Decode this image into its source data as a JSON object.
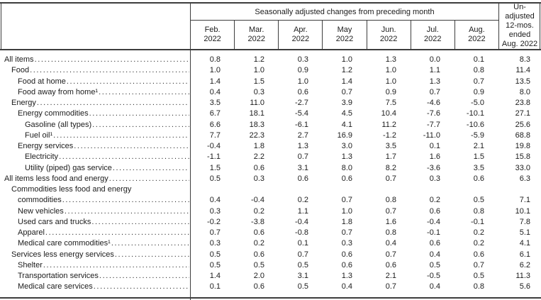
{
  "table": {
    "header": {
      "group_title": "Seasonally adjusted changes from preceding month",
      "months": [
        {
          "month": "Feb.",
          "year": "2022"
        },
        {
          "month": "Mar.",
          "year": "2022"
        },
        {
          "month": "Apr.",
          "year": "2022"
        },
        {
          "month": "May",
          "year": "2022"
        },
        {
          "month": "Jun.",
          "year": "2022"
        },
        {
          "month": "Jul.",
          "year": "2022"
        },
        {
          "month": "Aug.",
          "year": "2022"
        }
      ],
      "unadjusted_lines": [
        "Un-",
        "adjusted",
        "12-mos.",
        "ended",
        "Aug. 2022"
      ]
    },
    "rows": [
      {
        "label": "All items",
        "indent": 0,
        "values": [
          "0.8",
          "1.2",
          "0.3",
          "1.0",
          "1.3",
          "0.0",
          "0.1",
          "8.3"
        ]
      },
      {
        "label": "Food",
        "indent": 1,
        "values": [
          "1.0",
          "1.0",
          "0.9",
          "1.2",
          "1.0",
          "1.1",
          "0.8",
          "11.4"
        ]
      },
      {
        "label": "Food at home",
        "indent": 2,
        "values": [
          "1.4",
          "1.5",
          "1.0",
          "1.4",
          "1.0",
          "1.3",
          "0.7",
          "13.5"
        ]
      },
      {
        "label": "Food away from home¹",
        "indent": 2,
        "values": [
          "0.4",
          "0.3",
          "0.6",
          "0.7",
          "0.9",
          "0.7",
          "0.9",
          "8.0"
        ]
      },
      {
        "label": "Energy",
        "indent": 1,
        "values": [
          "3.5",
          "11.0",
          "-2.7",
          "3.9",
          "7.5",
          "-4.6",
          "-5.0",
          "23.8"
        ]
      },
      {
        "label": "Energy commodities",
        "indent": 2,
        "values": [
          "6.7",
          "18.1",
          "-5.4",
          "4.5",
          "10.4",
          "-7.6",
          "-10.1",
          "27.1"
        ]
      },
      {
        "label": "Gasoline (all types)",
        "indent": 3,
        "values": [
          "6.6",
          "18.3",
          "-6.1",
          "4.1",
          "11.2",
          "-7.7",
          "-10.6",
          "25.6"
        ]
      },
      {
        "label": "Fuel oil¹",
        "indent": 3,
        "values": [
          "7.7",
          "22.3",
          "2.7",
          "16.9",
          "-1.2",
          "-11.0",
          "-5.9",
          "68.8"
        ]
      },
      {
        "label": "Energy services",
        "indent": 2,
        "values": [
          "-0.4",
          "1.8",
          "1.3",
          "3.0",
          "3.5",
          "0.1",
          "2.1",
          "19.8"
        ]
      },
      {
        "label": "Electricity",
        "indent": 3,
        "values": [
          "-1.1",
          "2.2",
          "0.7",
          "1.3",
          "1.7",
          "1.6",
          "1.5",
          "15.8"
        ]
      },
      {
        "label": "Utility (piped) gas service",
        "indent": 3,
        "values": [
          "1.5",
          "0.6",
          "3.1",
          "8.0",
          "8.2",
          "-3.6",
          "3.5",
          "33.0"
        ]
      },
      {
        "label": "All items less food and energy",
        "indent": 0,
        "values": [
          "0.5",
          "0.3",
          "0.6",
          "0.6",
          "0.7",
          "0.3",
          "0.6",
          "6.3"
        ]
      },
      {
        "label": "Commodities less food and energy",
        "label2": "commodities",
        "indent": 1,
        "indent2": 2,
        "values": [
          "0.4",
          "-0.4",
          "0.2",
          "0.7",
          "0.8",
          "0.2",
          "0.5",
          "7.1"
        ]
      },
      {
        "label": "New vehicles",
        "indent": 2,
        "values": [
          "0.3",
          "0.2",
          "1.1",
          "1.0",
          "0.7",
          "0.6",
          "0.8",
          "10.1"
        ]
      },
      {
        "label": "Used cars and trucks",
        "indent": 2,
        "values": [
          "-0.2",
          "-3.8",
          "-0.4",
          "1.8",
          "1.6",
          "-0.4",
          "-0.1",
          "7.8"
        ]
      },
      {
        "label": "Apparel",
        "indent": 2,
        "values": [
          "0.7",
          "0.6",
          "-0.8",
          "0.7",
          "0.8",
          "-0.1",
          "0.2",
          "5.1"
        ]
      },
      {
        "label": "Medical care commodities¹",
        "indent": 2,
        "values": [
          "0.3",
          "0.2",
          "0.1",
          "0.3",
          "0.4",
          "0.6",
          "0.2",
          "4.1"
        ]
      },
      {
        "label": "Services less energy services",
        "indent": 1,
        "values": [
          "0.5",
          "0.6",
          "0.7",
          "0.6",
          "0.7",
          "0.4",
          "0.6",
          "6.1"
        ]
      },
      {
        "label": "Shelter",
        "indent": 2,
        "values": [
          "0.5",
          "0.5",
          "0.5",
          "0.6",
          "0.6",
          "0.5",
          "0.7",
          "6.2"
        ]
      },
      {
        "label": "Transportation services",
        "indent": 2,
        "values": [
          "1.4",
          "2.0",
          "3.1",
          "1.3",
          "2.1",
          "-0.5",
          "0.5",
          "11.3"
        ]
      },
      {
        "label": "Medical care services",
        "indent": 2,
        "values": [
          "0.1",
          "0.6",
          "0.5",
          "0.4",
          "0.7",
          "0.4",
          "0.8",
          "5.6"
        ]
      }
    ]
  }
}
